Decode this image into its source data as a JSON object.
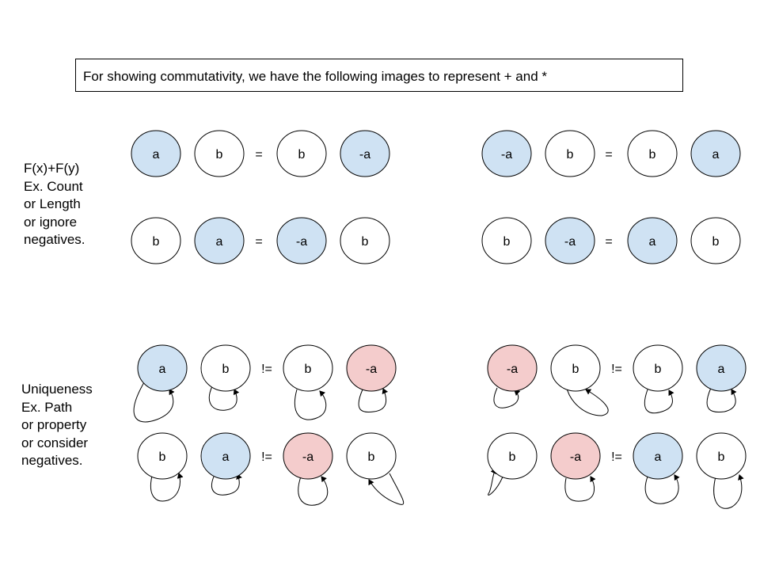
{
  "title": "For showing commutativity, we have the following images to represent + and *",
  "sections": [
    {
      "label_lines": [
        "F(x)+F(y)",
        "Ex. Count",
        "or Length",
        "or ignore",
        "negatives."
      ]
    },
    {
      "label_lines": [
        "Uniqueness",
        "Ex. Path",
        "or property",
        "or consider",
        "negatives."
      ]
    }
  ],
  "colors": {
    "blue": "#cfe2f3",
    "red": "#f4cccc",
    "white": "#ffffff",
    "stroke": "#000000"
  },
  "equations": [
    {
      "nodes": [
        {
          "label": "a",
          "fill": "blue"
        },
        {
          "label": "b",
          "fill": "white"
        },
        {
          "label": "b",
          "fill": "white"
        },
        {
          "label": "-a",
          "fill": "blue"
        }
      ],
      "op": "="
    },
    {
      "nodes": [
        {
          "label": "-a",
          "fill": "blue"
        },
        {
          "label": "b",
          "fill": "white"
        },
        {
          "label": "b",
          "fill": "white"
        },
        {
          "label": "a",
          "fill": "blue"
        }
      ],
      "op": "="
    },
    {
      "nodes": [
        {
          "label": "b",
          "fill": "white"
        },
        {
          "label": "a",
          "fill": "blue"
        },
        {
          "label": "-a",
          "fill": "blue"
        },
        {
          "label": "b",
          "fill": "white"
        }
      ],
      "op": "="
    },
    {
      "nodes": [
        {
          "label": "b",
          "fill": "white"
        },
        {
          "label": "-a",
          "fill": "blue"
        },
        {
          "label": "a",
          "fill": "blue"
        },
        {
          "label": "b",
          "fill": "white"
        }
      ],
      "op": "="
    },
    {
      "nodes": [
        {
          "label": "a",
          "fill": "blue"
        },
        {
          "label": "b",
          "fill": "white"
        },
        {
          "label": "b",
          "fill": "white"
        },
        {
          "label": "-a",
          "fill": "red"
        }
      ],
      "op": "!="
    },
    {
      "nodes": [
        {
          "label": "-a",
          "fill": "red"
        },
        {
          "label": "b",
          "fill": "white"
        },
        {
          "label": "b",
          "fill": "white"
        },
        {
          "label": "a",
          "fill": "blue"
        }
      ],
      "op": "!="
    },
    {
      "nodes": [
        {
          "label": "b",
          "fill": "white"
        },
        {
          "label": "a",
          "fill": "blue"
        },
        {
          "label": "-a",
          "fill": "red"
        },
        {
          "label": "b",
          "fill": "white"
        }
      ],
      "op": "!="
    },
    {
      "nodes": [
        {
          "label": "b",
          "fill": "white"
        },
        {
          "label": "-a",
          "fill": "red"
        },
        {
          "label": "a",
          "fill": "blue"
        },
        {
          "label": "b",
          "fill": "white"
        }
      ],
      "op": "!="
    }
  ]
}
